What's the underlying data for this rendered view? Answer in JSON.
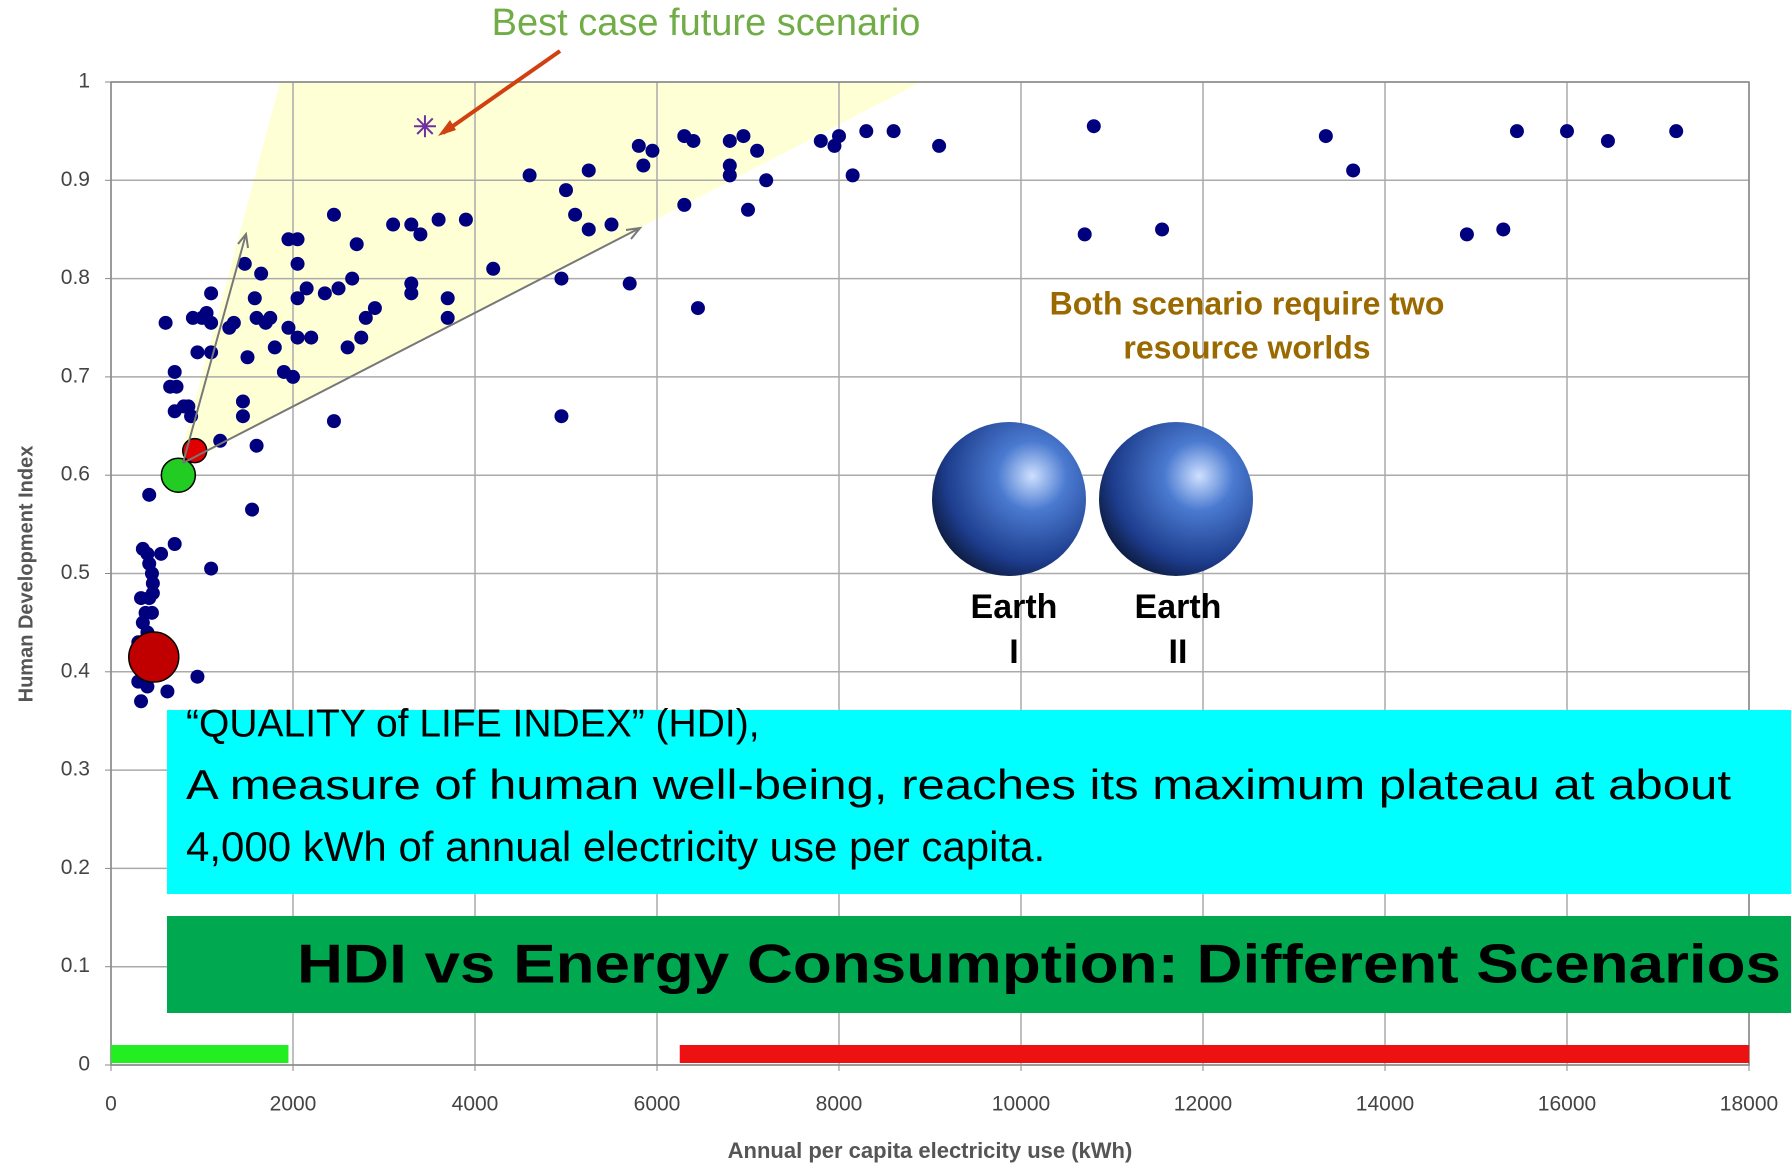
{
  "chart_data": {
    "type": "scatter",
    "title": "HDI vs Energy Consumption: Different Scenarios",
    "annotations": {
      "best_case": "Best case future scenario",
      "both_line1": "Both scenario require two",
      "both_line2": "resource worlds",
      "earth1_a": "Earth",
      "earth1_b": "I",
      "earth2_a": "Earth",
      "earth2_b": "II",
      "quality_line1": "“QUALITY of LIFE  INDEX” (HDI),",
      "quality_line2": "A measure of human well-being, reaches its maximum plateau at about",
      "quality_line3": "4,000 kWh of annual electricity use per capita."
    },
    "x_label": "Annual per capita electricity use (kWh)",
    "y_label": "Human Development Index",
    "xlim": [
      0,
      18000
    ],
    "ylim": [
      0,
      1
    ],
    "xticks": [
      0,
      2000,
      4000,
      6000,
      8000,
      10000,
      12000,
      14000,
      16000,
      18000
    ],
    "yticks": [
      0,
      0.1,
      0.2,
      0.3,
      0.4,
      0.5,
      0.6,
      0.7,
      0.8,
      0.9,
      1
    ],
    "grid": true,
    "series": [
      {
        "color": "#00007f",
        "x": [
          350,
          400,
          420,
          450,
          460,
          460,
          330,
          420,
          380,
          450,
          350,
          400,
          300,
          380,
          350,
          300,
          400,
          330,
          620,
          950,
          550,
          700,
          420,
          1100,
          1550,
          600,
          650,
          700,
          720,
          700,
          800,
          850,
          880,
          900,
          950,
          1000,
          1050,
          1100,
          1100,
          1100,
          1200,
          1300,
          1350,
          1450,
          1450,
          1470,
          1500,
          1580,
          1600,
          1600,
          1650,
          1700,
          1750,
          1800,
          1900,
          1950,
          1950,
          2000,
          2050,
          2050,
          2050,
          2050,
          2150,
          2200,
          2350,
          2450,
          2450,
          2500,
          2600,
          2650,
          2700,
          2750,
          2800,
          2900,
          3100,
          3300,
          3300,
          3300,
          3400,
          3600,
          3700,
          3700,
          3900,
          4200,
          4600,
          4950,
          5000,
          4950,
          5100,
          5250,
          5250,
          5500,
          5700,
          5800,
          5850,
          5950,
          6300,
          6300,
          6400,
          6450,
          6800,
          6800,
          6800,
          6950,
          7000,
          7100,
          7200,
          7800,
          7950,
          8000,
          8150,
          8300,
          8600,
          9100,
          10700,
          10800,
          11550,
          13350,
          13650,
          14900,
          15300,
          15450,
          16000,
          16450,
          17200
        ],
        "values": [
          0.525,
          0.52,
          0.51,
          0.5,
          0.49,
          0.48,
          0.475,
          0.475,
          0.46,
          0.46,
          0.45,
          0.44,
          0.43,
          0.42,
          0.4,
          0.39,
          0.385,
          0.37,
          0.38,
          0.395,
          0.52,
          0.53,
          0.58,
          0.505,
          0.565,
          0.755,
          0.69,
          0.705,
          0.69,
          0.665,
          0.67,
          0.67,
          0.66,
          0.76,
          0.725,
          0.76,
          0.765,
          0.755,
          0.725,
          0.785,
          0.635,
          0.75,
          0.755,
          0.66,
          0.675,
          0.815,
          0.72,
          0.78,
          0.76,
          0.63,
          0.805,
          0.755,
          0.76,
          0.73,
          0.705,
          0.75,
          0.84,
          0.7,
          0.74,
          0.84,
          0.815,
          0.78,
          0.79,
          0.74,
          0.785,
          0.865,
          0.655,
          0.79,
          0.73,
          0.8,
          0.835,
          0.74,
          0.76,
          0.77,
          0.855,
          0.855,
          0.795,
          0.785,
          0.845,
          0.86,
          0.78,
          0.76,
          0.86,
          0.81,
          0.905,
          0.8,
          0.89,
          0.66,
          0.865,
          0.85,
          0.91,
          0.855,
          0.795,
          0.935,
          0.915,
          0.93,
          0.875,
          0.945,
          0.94,
          0.77,
          0.94,
          0.915,
          0.905,
          0.945,
          0.87,
          0.93,
          0.9,
          0.94,
          0.935,
          0.945,
          0.905,
          0.95,
          0.95,
          0.935,
          0.845,
          0.955,
          0.85,
          0.945,
          0.91,
          0.845,
          0.85,
          0.95,
          0.95,
          0.94,
          0.95
        ]
      }
    ],
    "highlights": [
      {
        "x": 3450,
        "y": 0.955,
        "color": "#7030a0",
        "marker": "star"
      },
      {
        "x": 470,
        "y": 0.415,
        "color": "#c00000",
        "marker": "circle"
      },
      {
        "x": 740,
        "y": 0.6,
        "color": "#22cc22",
        "marker": "circle"
      },
      {
        "x": 920,
        "y": 0.625,
        "color": "#e00000",
        "marker": "circle"
      }
    ],
    "ranges": [
      {
        "start": 0,
        "end": 1950,
        "color": "#22ee22"
      },
      {
        "start": 6250,
        "end": 18000,
        "color": "#ee1111"
      }
    ]
  }
}
